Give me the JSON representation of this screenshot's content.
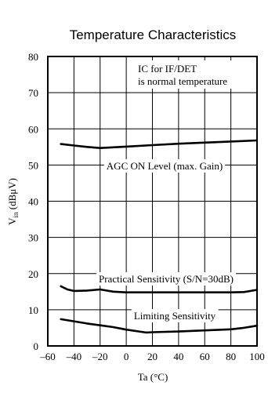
{
  "chart_data": {
    "type": "line",
    "title": "Temperature Characteristics",
    "xlabel": "Ta (°C)",
    "ylabel": {
      "main": "V",
      "sub": "in",
      "rest": " (dBμV)"
    },
    "xlim": [
      -60,
      100
    ],
    "ylim": [
      0,
      80
    ],
    "x_ticks": [
      -60,
      -40,
      -20,
      0,
      20,
      40,
      60,
      80,
      100
    ],
    "x_tick_labels": [
      "–60",
      "–40",
      "–20",
      "0",
      "20",
      "40",
      "60",
      "80",
      "100"
    ],
    "y_ticks": [
      0,
      10,
      20,
      30,
      40,
      50,
      60,
      70,
      80
    ],
    "y_tick_labels": [
      "0",
      "10",
      "20",
      "30",
      "40",
      "50",
      "60",
      "70",
      "80"
    ],
    "grid": true,
    "note": [
      "IC for IF/DET",
      "is normal temperature"
    ],
    "series": [
      {
        "name": "AGC ON Level (max. Gain)",
        "x": [
          -50,
          -40,
          -30,
          -20,
          -10,
          0,
          20,
          40,
          60,
          80,
          100
        ],
        "y": [
          55.8,
          55.4,
          55.0,
          54.7,
          54.9,
          55.1,
          55.5,
          55.9,
          56.2,
          56.5,
          56.8
        ]
      },
      {
        "name": "Practical Sensitivity (S/N=30dB)",
        "x": [
          -50,
          -45,
          -40,
          -30,
          -20,
          -15,
          -10,
          0,
          20,
          40,
          60,
          80,
          90,
          100
        ],
        "y": [
          16.5,
          15.6,
          15.2,
          15.3,
          15.6,
          15.3,
          15.0,
          14.8,
          14.8,
          14.8,
          14.8,
          14.8,
          14.9,
          15.5
        ]
      },
      {
        "name": "Limiting Sensitivity",
        "x": [
          -50,
          -40,
          -30,
          -20,
          -10,
          0,
          15,
          20,
          40,
          60,
          80,
          90,
          100
        ],
        "y": [
          7.4,
          6.8,
          6.2,
          5.7,
          5.2,
          4.5,
          3.7,
          3.8,
          4.0,
          4.3,
          4.6,
          5.0,
          5.6
        ]
      }
    ]
  }
}
